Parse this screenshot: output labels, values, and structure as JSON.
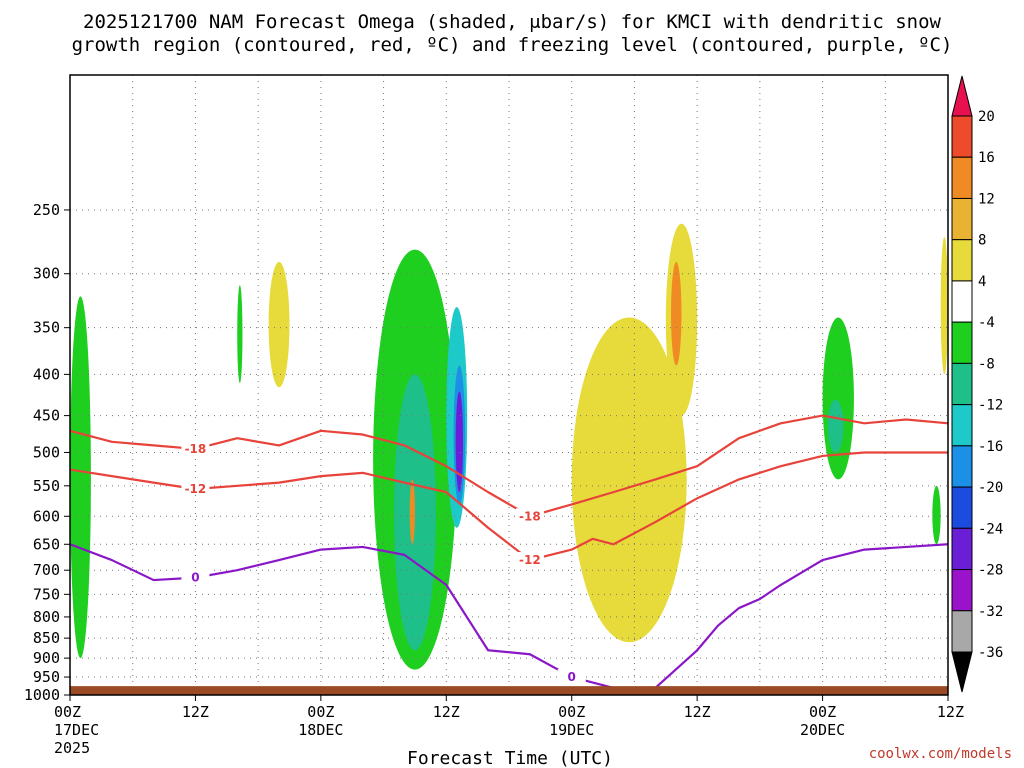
{
  "chart_data": {
    "type": "heatmap",
    "title_line1": "2025121700 NAM Forecast Omega (shaded, μbar/s) for KMCI with dendritic snow",
    "title_line2": "growth region (contoured, red, ºC) and freezing level (contoured, purple, ºC)",
    "xlabel": "Forecast Time (UTC)",
    "ylabel": "",
    "credit": "coolwx.com/models",
    "x_ticks": [
      {
        "hour": 0,
        "label": "00Z",
        "sub1": "17DEC",
        "sub2": "2025"
      },
      {
        "hour": 12,
        "label": "12Z",
        "sub1": "",
        "sub2": ""
      },
      {
        "hour": 24,
        "label": "00Z",
        "sub1": "18DEC",
        "sub2": ""
      },
      {
        "hour": 36,
        "label": "12Z",
        "sub1": "",
        "sub2": ""
      },
      {
        "hour": 48,
        "label": "00Z",
        "sub1": "19DEC",
        "sub2": ""
      },
      {
        "hour": 60,
        "label": "12Z",
        "sub1": "",
        "sub2": ""
      },
      {
        "hour": 72,
        "label": "00Z",
        "sub1": "20DEC",
        "sub2": ""
      },
      {
        "hour": 84,
        "label": "12Z",
        "sub1": "",
        "sub2": ""
      }
    ],
    "xlim": [
      0,
      84
    ],
    "y_pressure_levels": [
      250,
      300,
      350,
      400,
      450,
      500,
      550,
      600,
      650,
      700,
      750,
      800,
      850,
      900,
      950,
      1000
    ],
    "ylim": [
      1000,
      170
    ],
    "colorbar": {
      "levels": [
        20,
        16,
        12,
        8,
        4,
        -4,
        -8,
        -12,
        -16,
        -20,
        -24,
        -28,
        -32,
        -36
      ],
      "colors": [
        "#e8114f",
        "#ee4a2c",
        "#f08a24",
        "#e8b332",
        "#e6db3b",
        "#ffffff",
        "#1fcf1f",
        "#1fbf8a",
        "#1ec9c9",
        "#1c8fe6",
        "#1c4be0",
        "#6a1fd6",
        "#9a12c9",
        "#a8a8a8",
        "#000000"
      ]
    },
    "omega_regions": [
      {
        "name": "green-left-edge",
        "fill": "#1fcf1f",
        "t0": 0,
        "t1": 2,
        "p_top": 320,
        "p_bot": 900
      },
      {
        "name": "green-column-12z",
        "fill": "#1fcf1f",
        "t0": 16,
        "t1": 16.5,
        "p_top": 310,
        "p_bot": 410
      },
      {
        "name": "yellow-column-12z",
        "fill": "#e6db3b",
        "t0": 19,
        "t1": 21,
        "p_top": 290,
        "p_bot": 415
      },
      {
        "name": "green-main-18dec",
        "fill": "#1fcf1f",
        "t0": 29,
        "t1": 37,
        "p_top": 280,
        "p_bot": 930
      },
      {
        "name": "teal-main-18dec",
        "fill": "#1fbf8a",
        "t0": 31,
        "t1": 35,
        "p_top": 400,
        "p_bot": 880
      },
      {
        "name": "cyan-main-18dec",
        "fill": "#1ec9c9",
        "t0": 36,
        "t1": 38,
        "p_top": 330,
        "p_bot": 620
      },
      {
        "name": "blue-core-18dec",
        "fill": "#1c8fe6",
        "t0": 36.7,
        "t1": 37.8,
        "p_top": 390,
        "p_bot": 580
      },
      {
        "name": "purple-core-18dec",
        "fill": "#6a1fd6",
        "t0": 36.9,
        "t1": 37.6,
        "p_top": 420,
        "p_bot": 560
      },
      {
        "name": "orange-strip",
        "fill": "#f08a24",
        "t0": 32.5,
        "t1": 33,
        "p_top": 540,
        "p_bot": 650
      },
      {
        "name": "yellow-19dec",
        "fill": "#e6db3b",
        "t0": 48,
        "t1": 59,
        "p_top": 340,
        "p_bot": 860
      },
      {
        "name": "yellow-upper-19dec",
        "fill": "#e6db3b",
        "t0": 57,
        "t1": 60,
        "p_top": 260,
        "p_bot": 450
      },
      {
        "name": "orange-upper-19dec",
        "fill": "#f08a24",
        "t0": 57.5,
        "t1": 58.5,
        "p_top": 290,
        "p_bot": 390
      },
      {
        "name": "green-20dec",
        "fill": "#1fcf1f",
        "t0": 72,
        "t1": 75,
        "p_top": 340,
        "p_bot": 540
      },
      {
        "name": "teal-20dec",
        "fill": "#1fbf8a",
        "t0": 72.5,
        "t1": 74,
        "p_top": 430,
        "p_bot": 500
      },
      {
        "name": "green-right-edge",
        "fill": "#1fcf1f",
        "t0": 82.5,
        "t1": 83.3,
        "p_top": 550,
        "p_bot": 650
      },
      {
        "name": "yellow-right-edge",
        "fill": "#e6db3b",
        "t0": 83.3,
        "t1": 84,
        "p_top": 270,
        "p_bot": 400
      }
    ],
    "contours": [
      {
        "name": "minus-18c",
        "color": "#e8433a",
        "label": "-18",
        "points": [
          [
            0,
            470
          ],
          [
            4,
            485
          ],
          [
            8,
            490
          ],
          [
            12,
            495
          ],
          [
            16,
            480
          ],
          [
            20,
            490
          ],
          [
            24,
            470
          ],
          [
            28,
            475
          ],
          [
            32,
            490
          ],
          [
            36,
            520
          ],
          [
            40,
            560
          ],
          [
            44,
            600
          ],
          [
            48,
            580
          ],
          [
            52,
            560
          ],
          [
            56,
            540
          ],
          [
            60,
            520
          ],
          [
            64,
            480
          ],
          [
            68,
            460
          ],
          [
            72,
            450
          ],
          [
            76,
            460
          ],
          [
            80,
            455
          ],
          [
            84,
            460
          ]
        ]
      },
      {
        "name": "minus-12c",
        "color": "#e8433a",
        "label": "-12",
        "points": [
          [
            0,
            525
          ],
          [
            4,
            535
          ],
          [
            8,
            545
          ],
          [
            12,
            555
          ],
          [
            16,
            550
          ],
          [
            20,
            545
          ],
          [
            24,
            535
          ],
          [
            28,
            530
          ],
          [
            32,
            545
          ],
          [
            36,
            560
          ],
          [
            40,
            620
          ],
          [
            44,
            680
          ],
          [
            48,
            660
          ],
          [
            50,
            640
          ],
          [
            52,
            650
          ],
          [
            56,
            610
          ],
          [
            60,
            570
          ],
          [
            64,
            540
          ],
          [
            68,
            520
          ],
          [
            72,
            505
          ],
          [
            76,
            500
          ],
          [
            80,
            500
          ],
          [
            84,
            500
          ]
        ]
      },
      {
        "name": "zero-c",
        "color": "#8a17c7",
        "label": "0",
        "points": [
          [
            0,
            650
          ],
          [
            4,
            680
          ],
          [
            8,
            720
          ],
          [
            12,
            715
          ],
          [
            16,
            700
          ],
          [
            20,
            680
          ],
          [
            24,
            660
          ],
          [
            28,
            655
          ],
          [
            32,
            670
          ],
          [
            36,
            730
          ],
          [
            40,
            880
          ],
          [
            44,
            890
          ],
          [
            48,
            950
          ],
          [
            52,
            980
          ],
          [
            56,
            980
          ],
          [
            60,
            880
          ],
          [
            62,
            820
          ],
          [
            64,
            780
          ],
          [
            66,
            760
          ],
          [
            68,
            730
          ],
          [
            72,
            680
          ],
          [
            76,
            660
          ],
          [
            80,
            655
          ],
          [
            84,
            650
          ]
        ]
      }
    ],
    "surface": {
      "fill": "#9a4a25",
      "p_top": 975
    }
  }
}
